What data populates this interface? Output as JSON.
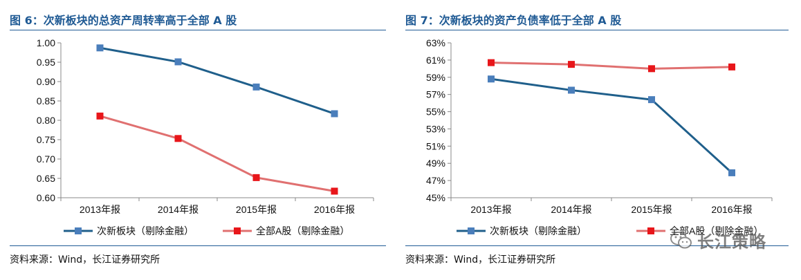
{
  "left": {
    "title": "图 6：次新板块的总资产周转率高于全部 A 股",
    "source": "资料来源：Wind，长江证券研究所"
  },
  "right": {
    "title": "图 7：次新板块的资产负债率低于全部 A 股",
    "source": "资料来源：Wind，长江证券研究所"
  },
  "watermark": {
    "text": "长江策略",
    "icon": "wechat-icon"
  },
  "colors": {
    "blue": "#1f5f8b",
    "red": "#e07070",
    "blue_marker": "#4a7ebb",
    "red_marker": "#e8161a",
    "title": "#1f5a94"
  },
  "chart_data": [
    {
      "type": "line",
      "categories": [
        "2013年报",
        "2014年报",
        "2015年报",
        "2016年报"
      ],
      "series": [
        {
          "name": "次新板块（剔除金融）",
          "values": [
            0.987,
            0.951,
            0.886,
            0.817
          ]
        },
        {
          "name": "全部A股（剔除金融）",
          "values": [
            0.811,
            0.753,
            0.652,
            0.617
          ]
        }
      ],
      "yticks": [
        "1.00",
        "0.95",
        "0.90",
        "0.85",
        "0.80",
        "0.75",
        "0.70",
        "0.65",
        "0.60"
      ],
      "ylim": [
        0.6,
        1.0
      ],
      "grid": false,
      "legend": "bottom"
    },
    {
      "type": "line",
      "categories": [
        "2013年报",
        "2014年报",
        "2015年报",
        "2016年报"
      ],
      "series": [
        {
          "name": "次新板块（剔除金融）",
          "values": [
            58.8,
            57.5,
            56.4,
            47.9
          ]
        },
        {
          "name": "全部A股（剔除金融）",
          "values": [
            60.7,
            60.5,
            60.0,
            60.2
          ]
        }
      ],
      "yticks": [
        "63%",
        "61%",
        "59%",
        "57%",
        "55%",
        "53%",
        "51%",
        "49%",
        "47%",
        "45%"
      ],
      "ylim": [
        45,
        63
      ],
      "grid": false,
      "legend": "bottom"
    }
  ]
}
